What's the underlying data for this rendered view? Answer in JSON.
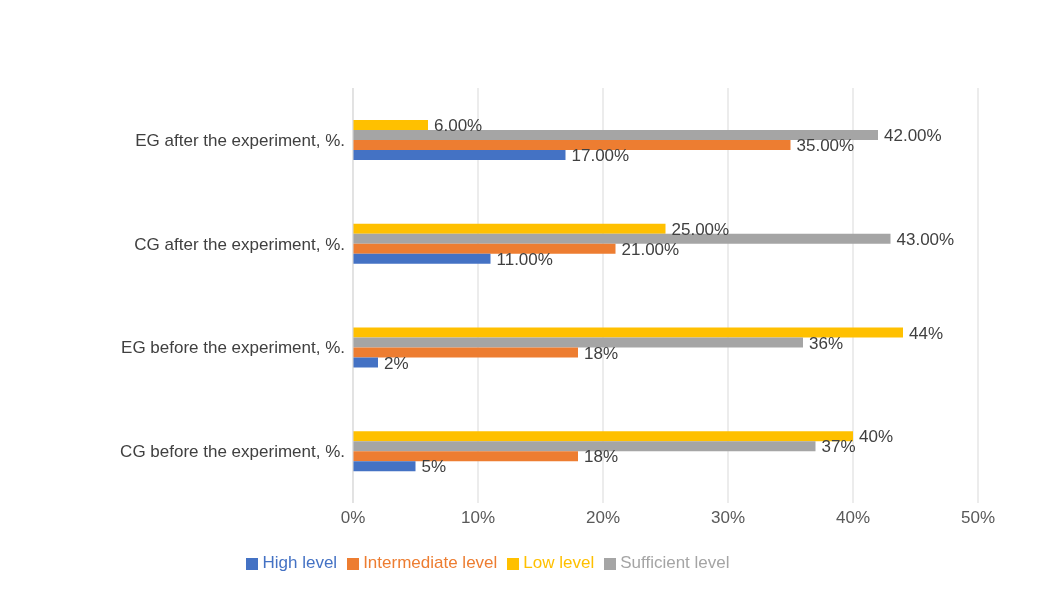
{
  "chart_data": {
    "type": "bar",
    "orientation": "horizontal",
    "categories": [
      "EG after the experiment, %.",
      "CG after the experiment, %.",
      "EG before the experiment, %.",
      "CG before the experiment, %."
    ],
    "series": [
      {
        "name": "Low level",
        "color": "#ffc000",
        "values": [
          6,
          25,
          44,
          40
        ],
        "value_labels": [
          "6.00%",
          "25.00%",
          "44%",
          "40%"
        ]
      },
      {
        "name": "Sufficient level",
        "color": "#a5a5a5",
        "values": [
          42,
          43,
          36,
          37
        ],
        "value_labels": [
          "42.00%",
          "43.00%",
          "36%",
          "37%"
        ]
      },
      {
        "name": "Intermediate level",
        "color": "#ed7d31",
        "values": [
          35,
          21,
          18,
          18
        ],
        "value_labels": [
          "35.00%",
          "21.00%",
          "18%",
          "18%"
        ]
      },
      {
        "name": "High level",
        "color": "#4472c4",
        "values": [
          17,
          11,
          2,
          5
        ],
        "value_labels": [
          "17.00%",
          "11.00%",
          "2%",
          "5%"
        ]
      }
    ],
    "xlim": [
      0,
      50
    ],
    "xticks": [
      {
        "value": 0,
        "label": "0%"
      },
      {
        "value": 10,
        "label": "10%"
      },
      {
        "value": 20,
        "label": "20%"
      },
      {
        "value": 30,
        "label": "30%"
      },
      {
        "value": 40,
        "label": "40%"
      },
      {
        "value": 50,
        "label": "50%"
      }
    ],
    "grid": "x",
    "legend": "bottom"
  }
}
